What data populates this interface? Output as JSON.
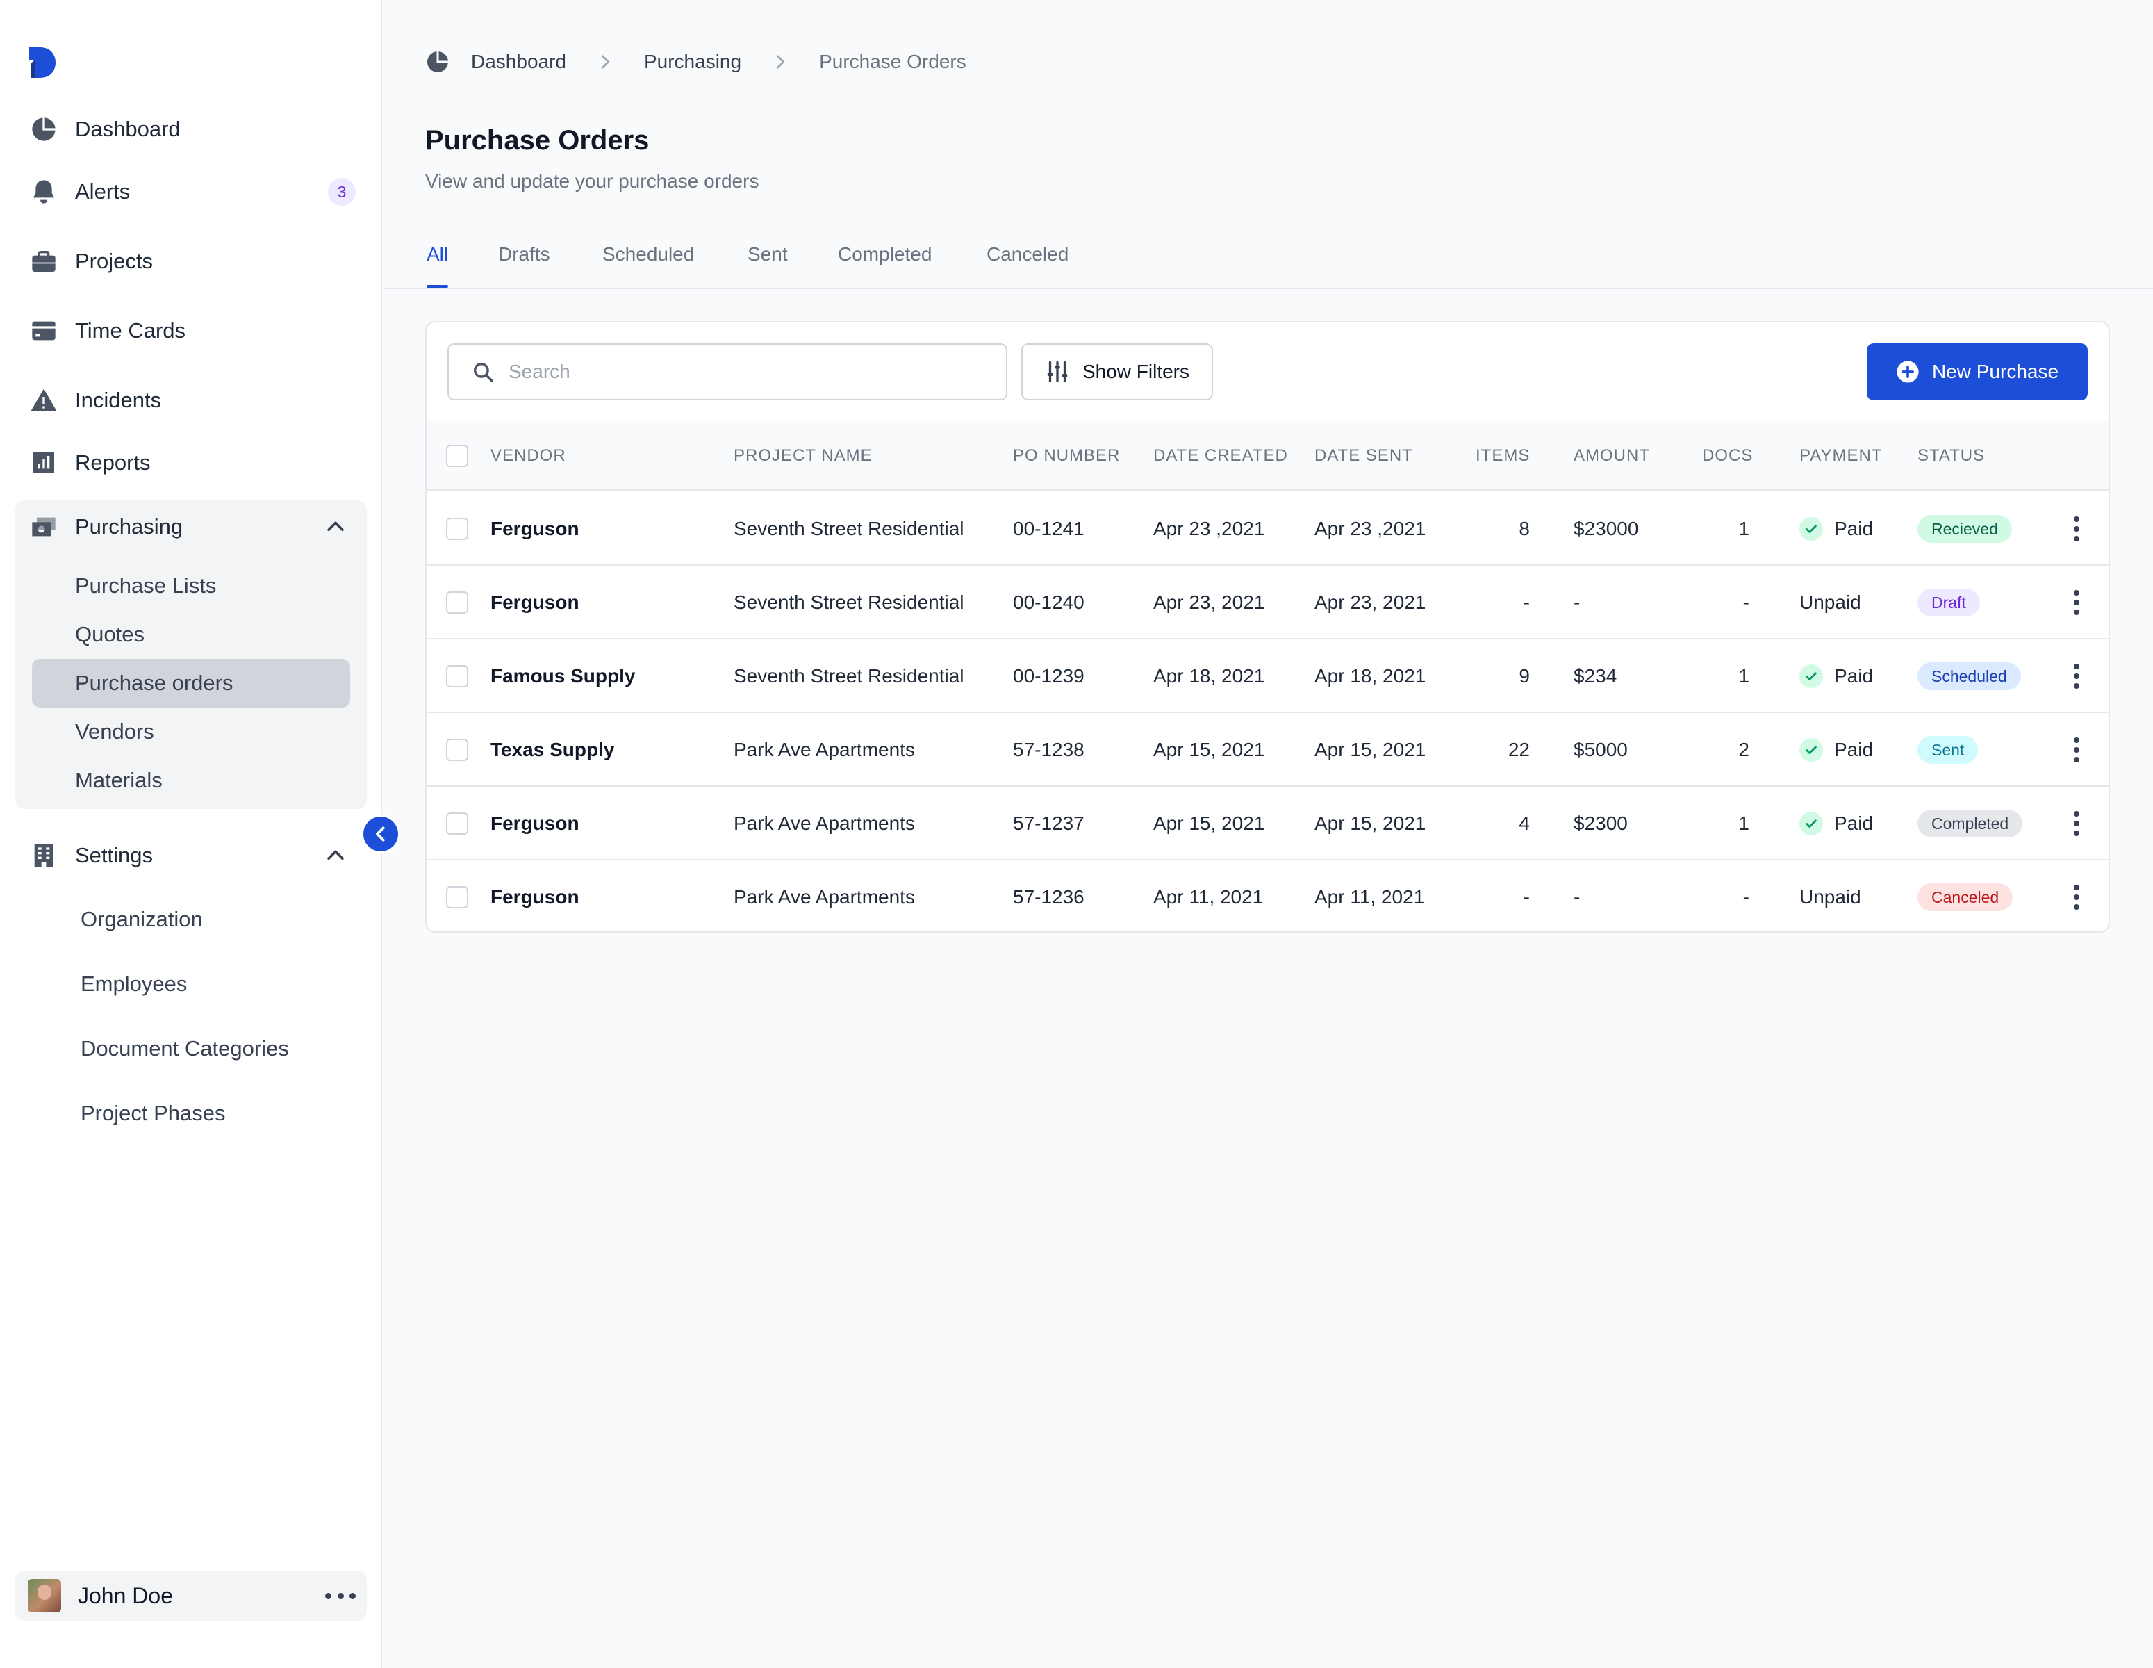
{
  "colors": {
    "accent": "#1d4ed8",
    "sidebar_bg": "#ffffff",
    "page_bg": "#f9fafb"
  },
  "sidebar": {
    "logo_icon": "app-logo",
    "nav": [
      {
        "id": "dashboard",
        "label": "Dashboard",
        "icon": "pie-chart-icon"
      },
      {
        "id": "alerts",
        "label": "Alerts",
        "icon": "bell-icon",
        "badge": "3"
      },
      {
        "id": "projects",
        "label": "Projects",
        "icon": "briefcase-icon"
      },
      {
        "id": "time-cards",
        "label": "Time Cards",
        "icon": "credit-card-icon"
      },
      {
        "id": "incidents",
        "label": "Incidents",
        "icon": "warning-icon"
      },
      {
        "id": "reports",
        "label": "Reports",
        "icon": "bar-chart-icon"
      }
    ],
    "purchasing": {
      "label": "Purchasing",
      "icon": "cash-icon",
      "expanded": true,
      "items": [
        "Purchase Lists",
        "Quotes",
        "Purchase orders",
        "Vendors",
        "Materials"
      ],
      "active": "Purchase orders"
    },
    "settings": {
      "label": "Settings",
      "icon": "building-icon",
      "expanded": true,
      "items": [
        "Organization",
        "Employees",
        "Document Categories",
        "Project Phases"
      ]
    },
    "user": {
      "name": "John Doe"
    }
  },
  "breadcrumb": [
    "Dashboard",
    "Purchasing",
    "Purchase Orders"
  ],
  "page": {
    "title": "Purchase Orders",
    "subtitle": "View and update your purchase orders"
  },
  "tabs": [
    "All",
    "Drafts",
    "Scheduled",
    "Sent",
    "Completed",
    "Canceled"
  ],
  "active_tab": "All",
  "toolbar": {
    "search_placeholder": "Search",
    "filters_label": "Show Filters",
    "new_label": "New Purchase"
  },
  "table": {
    "columns": [
      "VENDOR",
      "PROJECT NAME",
      "PO NUMBER",
      "DATE CREATED",
      "DATE SENT",
      "ITEMS",
      "AMOUNT",
      "DOCS",
      "PAYMENT",
      "STATUS"
    ],
    "rows": [
      {
        "vendor": "Ferguson",
        "project": "Seventh Street Residential",
        "po": "00-1241",
        "created": "Apr 23 ,2021",
        "sent": "Apr 23 ,2021",
        "items": "8",
        "amount": "$23000",
        "docs": "1",
        "payment": "Paid",
        "status": "Recieved",
        "status_style": "received"
      },
      {
        "vendor": "Ferguson",
        "project": "Seventh Street Residential",
        "po": "00-1240",
        "created": "Apr 23, 2021",
        "sent": "Apr 23, 2021",
        "items": "-",
        "amount": "-",
        "docs": "-",
        "payment": "Unpaid",
        "status": "Draft",
        "status_style": "draft"
      },
      {
        "vendor": "Famous Supply",
        "project": "Seventh Street Residential",
        "po": "00-1239",
        "created": "Apr 18, 2021",
        "sent": "Apr 18, 2021",
        "items": "9",
        "amount": "$234",
        "docs": "1",
        "payment": "Paid",
        "status": "Scheduled",
        "status_style": "scheduled"
      },
      {
        "vendor": "Texas Supply",
        "project": "Park Ave Apartments",
        "po": "57-1238",
        "created": "Apr 15, 2021",
        "sent": "Apr 15, 2021",
        "items": "22",
        "amount": "$5000",
        "docs": "2",
        "payment": "Paid",
        "status": "Sent",
        "status_style": "sent"
      },
      {
        "vendor": "Ferguson",
        "project": "Park Ave Apartments",
        "po": "57-1237",
        "created": "Apr 15, 2021",
        "sent": "Apr 15, 2021",
        "items": "4",
        "amount": "$2300",
        "docs": "1",
        "payment": "Paid",
        "status": "Completed",
        "status_style": "completed"
      },
      {
        "vendor": "Ferguson",
        "project": "Park Ave Apartments",
        "po": "57-1236",
        "created": "Apr 11, 2021",
        "sent": "Apr 11, 2021",
        "items": "-",
        "amount": "-",
        "docs": "-",
        "payment": "Unpaid",
        "status": "Canceled",
        "status_style": "canceled"
      }
    ],
    "status_colors": {
      "received": {
        "bg": "#d1fae5",
        "fg": "#065f46"
      },
      "draft": {
        "bg": "#ede9fe",
        "fg": "#6d28d9"
      },
      "scheduled": {
        "bg": "#dbeafe",
        "fg": "#1e40af"
      },
      "sent": {
        "bg": "#cffafe",
        "fg": "#0e7490"
      },
      "completed": {
        "bg": "#e5e7eb",
        "fg": "#374151"
      },
      "canceled": {
        "bg": "#fee2e2",
        "fg": "#b91c1c"
      }
    }
  }
}
